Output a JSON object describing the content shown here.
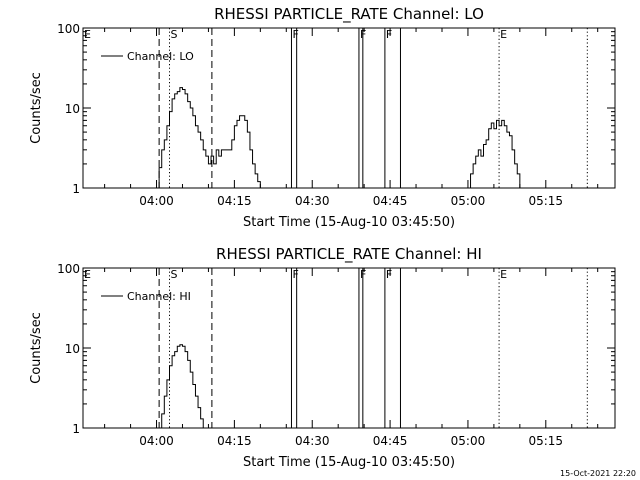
{
  "chart_data": [
    {
      "type": "line",
      "title": "RHESSI PARTICLE_RATE Channel: LO",
      "xlabel": "Start Time (15-Aug-10 03:45:50)",
      "ylabel": "Counts/sec",
      "y_scale": "log",
      "xlim": [
        "03:45:50",
        "05:28:20"
      ],
      "ylim": [
        1,
        100
      ],
      "x_tick_labels": [
        "04:00",
        "04:15",
        "04:30",
        "04:45",
        "05:00",
        "05:15"
      ],
      "y_tick_labels": [
        "1",
        "10",
        "100"
      ],
      "grid": false,
      "legend": {
        "position": "top-left",
        "entries": [
          "Channel: LO"
        ]
      },
      "series": [
        {
          "name": "Channel: LO",
          "x": [
            "04:00:00",
            "04:00:30",
            "04:01:00",
            "04:01:30",
            "04:02:00",
            "04:02:30",
            "04:03:00",
            "04:03:30",
            "04:04:00",
            "04:04:30",
            "04:05:00",
            "04:05:30",
            "04:06:00",
            "04:06:30",
            "04:07:00",
            "04:07:30",
            "04:08:00",
            "04:08:30",
            "04:09:00",
            "04:09:30",
            "04:10:00",
            "04:10:30",
            "04:11:00",
            "04:11:30",
            "04:12:00",
            "04:12:30",
            "04:13:00",
            "04:13:30",
            "04:14:00",
            "04:14:30",
            "04:15:00",
            "04:15:30",
            "04:16:00",
            "04:16:30",
            "04:17:00",
            "04:17:30",
            "04:18:00",
            "04:18:30",
            "04:19:00",
            "04:19:30",
            "04:20:00"
          ],
          "y": [
            1.0,
            1.8,
            3.0,
            4.0,
            6.0,
            9.0,
            13.0,
            15.0,
            16.0,
            18.0,
            17.0,
            15.0,
            12.0,
            10.0,
            8.0,
            6.0,
            5.0,
            4.0,
            3.0,
            2.5,
            2.0,
            2.5,
            2.0,
            3.0,
            2.5,
            3.0,
            3.0,
            3.0,
            3.0,
            4.0,
            6.0,
            7.0,
            8.0,
            8.0,
            7.0,
            5.0,
            3.0,
            2.0,
            1.5,
            1.2,
            1.0
          ]
        },
        {
          "name": "Channel: LO",
          "x": [
            "05:00:00",
            "05:00:30",
            "05:01:00",
            "05:01:30",
            "05:02:00",
            "05:02:30",
            "05:03:00",
            "05:03:30",
            "05:04:00",
            "05:04:30",
            "05:05:00",
            "05:05:30",
            "05:06:00",
            "05:06:30",
            "05:07:00",
            "05:07:30",
            "05:08:00",
            "05:08:30",
            "05:09:00",
            "05:09:30",
            "05:10:00"
          ],
          "y": [
            1.0,
            1.5,
            2.0,
            2.5,
            3.0,
            2.5,
            3.5,
            4.0,
            5.5,
            6.5,
            5.5,
            7.0,
            6.0,
            7.0,
            6.0,
            5.0,
            4.5,
            3.0,
            2.0,
            1.5,
            1.0
          ]
        }
      ],
      "event_markers": [
        {
          "label": "E",
          "time": "03:45:50",
          "style": "none"
        },
        {
          "label": "S",
          "time": "04:02:30",
          "style": "dotted"
        },
        {
          "label": "F",
          "time": "04:26:00",
          "style": "solid"
        },
        {
          "label": "F",
          "time": "04:39:00",
          "style": "solid"
        },
        {
          "label": "F",
          "time": "04:44:00",
          "style": "solid"
        },
        {
          "label": "E",
          "time": "05:06:00",
          "style": "dotted"
        }
      ],
      "vertical_lines": [
        {
          "time": "04:00:30",
          "style": "dashed"
        },
        {
          "time": "04:02:30",
          "style": "dotted"
        },
        {
          "time": "04:10:40",
          "style": "dashed"
        },
        {
          "time": "04:26:00",
          "style": "solid"
        },
        {
          "time": "04:27:00",
          "style": "solid"
        },
        {
          "time": "04:39:00",
          "style": "solid"
        },
        {
          "time": "04:39:45",
          "style": "solid"
        },
        {
          "time": "04:44:00",
          "style": "solid"
        },
        {
          "time": "04:47:00",
          "style": "solid"
        },
        {
          "time": "05:06:00",
          "style": "dotted"
        },
        {
          "time": "05:23:00",
          "style": "dotted"
        }
      ]
    },
    {
      "type": "line",
      "title": "RHESSI PARTICLE_RATE Channel: HI",
      "xlabel": "Start Time (15-Aug-10 03:45:50)",
      "ylabel": "Counts/sec",
      "y_scale": "log",
      "xlim": [
        "03:45:50",
        "05:28:20"
      ],
      "ylim": [
        1,
        100
      ],
      "x_tick_labels": [
        "04:00",
        "04:15",
        "04:30",
        "04:45",
        "05:00",
        "05:15"
      ],
      "y_tick_labels": [
        "1",
        "10",
        "100"
      ],
      "grid": false,
      "legend": {
        "position": "top-left",
        "entries": [
          "Channel: HI"
        ]
      },
      "series": [
        {
          "name": "Channel: HI",
          "x": [
            "04:00:30",
            "04:01:00",
            "04:01:30",
            "04:02:00",
            "04:02:30",
            "04:03:00",
            "04:03:30",
            "04:04:00",
            "04:04:30",
            "04:05:00",
            "04:05:30",
            "04:06:00",
            "04:06:30",
            "04:07:00",
            "04:07:30",
            "04:08:00",
            "04:08:30",
            "04:09:00"
          ],
          "y": [
            1.0,
            1.5,
            2.5,
            4.0,
            6.0,
            8.0,
            9.0,
            10.5,
            11.0,
            10.5,
            9.0,
            7.0,
            5.0,
            3.5,
            2.5,
            1.8,
            1.3,
            1.0
          ]
        }
      ],
      "event_markers": [
        {
          "label": "E",
          "time": "03:45:50",
          "style": "none"
        },
        {
          "label": "S",
          "time": "04:02:30",
          "style": "dotted"
        },
        {
          "label": "F",
          "time": "04:26:00",
          "style": "solid"
        },
        {
          "label": "F",
          "time": "04:39:00",
          "style": "solid"
        },
        {
          "label": "F",
          "time": "04:44:00",
          "style": "solid"
        },
        {
          "label": "E",
          "time": "05:06:00",
          "style": "dotted"
        }
      ],
      "vertical_lines": [
        {
          "time": "04:00:30",
          "style": "dashed"
        },
        {
          "time": "04:02:30",
          "style": "dotted"
        },
        {
          "time": "04:10:40",
          "style": "dashed"
        },
        {
          "time": "04:26:00",
          "style": "solid"
        },
        {
          "time": "04:27:00",
          "style": "solid"
        },
        {
          "time": "04:39:00",
          "style": "solid"
        },
        {
          "time": "04:39:45",
          "style": "solid"
        },
        {
          "time": "04:44:00",
          "style": "solid"
        },
        {
          "time": "04:47:00",
          "style": "solid"
        },
        {
          "time": "05:06:00",
          "style": "dotted"
        },
        {
          "time": "05:23:00",
          "style": "dotted"
        }
      ]
    }
  ],
  "footer": {
    "timestamp": "15-Oct-2021 22:20"
  }
}
